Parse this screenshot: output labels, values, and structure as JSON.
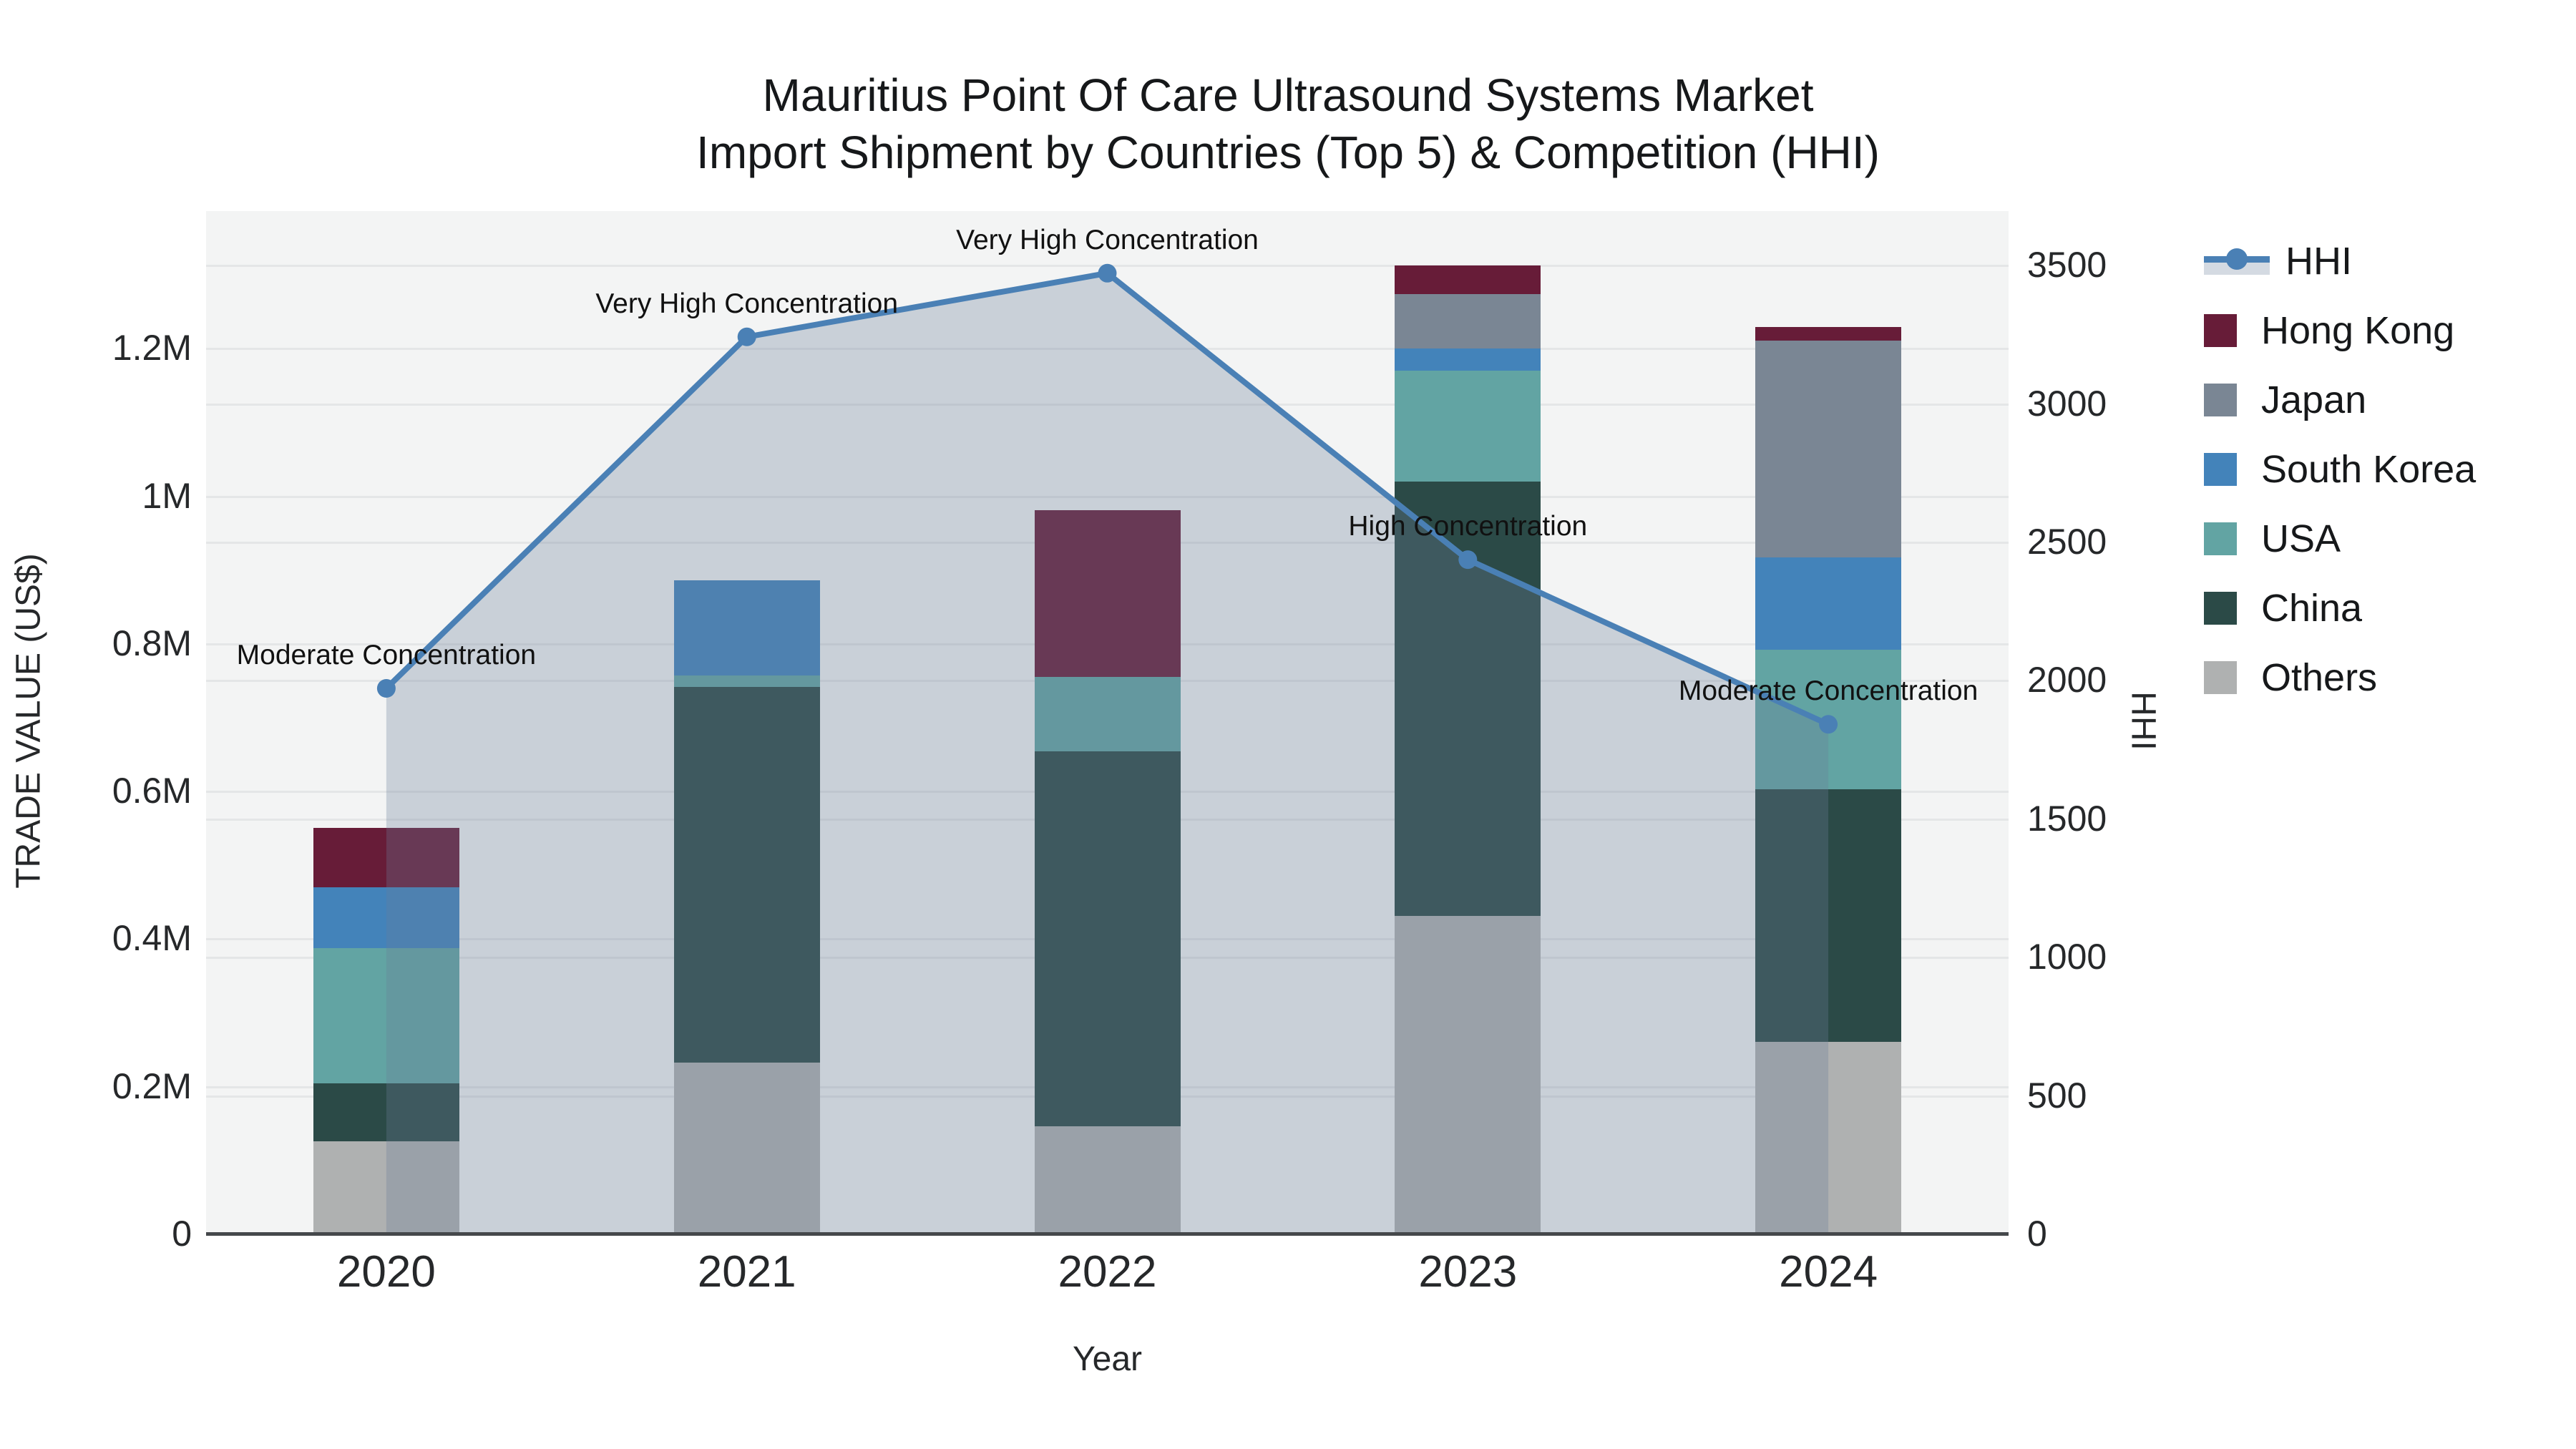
{
  "title": {
    "line1": "Mauritius Point Of Care Ultrasound Systems Market",
    "line2": "Import Shipment by Countries (Top 5) & Competition (HHI)"
  },
  "axes": {
    "y_left": {
      "title": "TRADE VALUE (US$)",
      "ticks": [
        "0",
        "0.2M",
        "0.4M",
        "0.6M",
        "0.8M",
        "1M",
        "1.2M"
      ],
      "tick_values": [
        0,
        200000,
        400000,
        600000,
        800000,
        1000000,
        1200000
      ]
    },
    "y_right": {
      "title": "HHI",
      "ticks": [
        "0",
        "500",
        "1000",
        "1500",
        "2000",
        "2500",
        "3000",
        "3500"
      ],
      "tick_values": [
        0,
        500,
        1000,
        1500,
        2000,
        2500,
        3000,
        3500
      ]
    },
    "x": {
      "title": "Year",
      "ticks": [
        "2020",
        "2021",
        "2022",
        "2023",
        "2024"
      ]
    }
  },
  "legend": {
    "items": [
      {
        "label": "HHI",
        "type": "line",
        "color": "#4a80b5"
      },
      {
        "label": "Hong Kong",
        "type": "box",
        "color": "#671c38"
      },
      {
        "label": "Japan",
        "type": "box",
        "color": "#7a8694"
      },
      {
        "label": "South Korea",
        "type": "box",
        "color": "#4383ba"
      },
      {
        "label": "USA",
        "type": "box",
        "color": "#62a4a3"
      },
      {
        "label": "China",
        "type": "box",
        "color": "#2b4a47"
      },
      {
        "label": "Others",
        "type": "box",
        "color": "#afb1b1"
      }
    ]
  },
  "annotations": [
    {
      "year": "2020",
      "text": "Moderate Concentration"
    },
    {
      "year": "2021",
      "text": "Very High Concentration"
    },
    {
      "year": "2022",
      "text": "Very High Concentration"
    },
    {
      "year": "2023",
      "text": "High Concentration"
    },
    {
      "year": "2024",
      "text": "Moderate Concentration"
    }
  ],
  "chart_data": {
    "type": "bar+line",
    "categories": [
      "2020",
      "2021",
      "2022",
      "2023",
      "2024"
    ],
    "bar_stack_order_bottom_to_top": [
      "Others",
      "China",
      "USA",
      "South Korea",
      "Japan",
      "Hong Kong"
    ],
    "series": [
      {
        "name": "Others",
        "color": "#afb1b1",
        "values": [
          125000,
          232000,
          145000,
          430000,
          260000
        ]
      },
      {
        "name": "China",
        "color": "#2b4a47",
        "values": [
          79000,
          509000,
          508000,
          589000,
          342000
        ]
      },
      {
        "name": "USA",
        "color": "#62a4a3",
        "values": [
          183000,
          15000,
          101000,
          150000,
          189000
        ]
      },
      {
        "name": "South Korea",
        "color": "#4383ba",
        "values": [
          82000,
          129000,
          0,
          30000,
          125000
        ]
      },
      {
        "name": "Japan",
        "color": "#7a8694",
        "values": [
          0,
          0,
          0,
          74000,
          294000
        ]
      },
      {
        "name": "Hong Kong",
        "color": "#671c38",
        "values": [
          81000,
          0,
          226000,
          39000,
          18000
        ]
      }
    ],
    "hhi": {
      "name": "HHI",
      "values": [
        1970,
        3240,
        3470,
        2435,
        1840
      ],
      "line_color": "#4a80b5",
      "area_fill": "rgba(107,127,153,0.30)"
    },
    "title": "Mauritius Point Of Care Ultrasound Systems Market Import Shipment by Countries (Top 5) & Competition (HHI)",
    "xlabel": "Year",
    "ylabel_left": "TRADE VALUE (US$)",
    "ylabel_right": "HHI",
    "ylim_left": [
      0,
      1380000
    ],
    "ylim_right": [
      0,
      3680
    ],
    "grid": true,
    "legend_position": "right"
  }
}
